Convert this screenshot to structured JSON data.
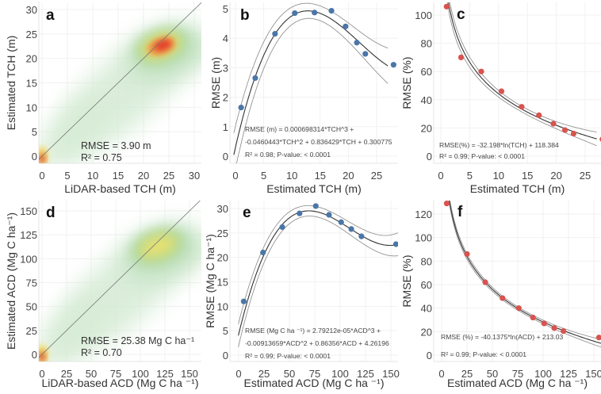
{
  "chart_data": [
    {
      "id": "a",
      "type": "heatmap",
      "panel_label": "a",
      "xlabel": "LiDAR-based TCH (m)",
      "ylabel": "Estimated TCH (m)",
      "xticks": [
        0,
        5,
        10,
        15,
        20,
        25,
        30
      ],
      "yticks": [
        0,
        5,
        10,
        15,
        20,
        25,
        30
      ],
      "xlim": [
        -0.7,
        31.5
      ],
      "ylim": [
        -1.5,
        31.5
      ],
      "one_to_one_line": true,
      "density_peak": [
        23.5,
        22.5
      ],
      "annotation": [
        "RMSE = 3.90 m",
        "R² = 0.75"
      ]
    },
    {
      "id": "b",
      "type": "scatter",
      "panel_label": "b",
      "xlabel": "Estimated TCH (m)",
      "ylabel": "RMSE (m)",
      "xticks": [
        0,
        5,
        10,
        15,
        20,
        25
      ],
      "yticks": [
        0,
        1,
        2,
        3,
        4,
        5
      ],
      "x": [
        1,
        3.5,
        7,
        10.5,
        14,
        17,
        19.5,
        21.5,
        23,
        28
      ],
      "y": [
        1.65,
        2.65,
        4.15,
        4.85,
        4.87,
        4.93,
        4.4,
        3.85,
        3.47,
        3.1
      ],
      "fit": {
        "kind": "cubic",
        "coef": [
          0.000698314,
          -0.0460443,
          0.836429,
          0.300775
        ]
      },
      "point_color": "#4a76a8",
      "annotation": [
        "RMSE (m) = 0.000698314*TCH^3 +",
        "-0.0460443*TCH^2 + 0.836429*TCH + 0.300775",
        "R² = 0.98;   P-value: < 0.0001"
      ]
    },
    {
      "id": "c",
      "type": "scatter",
      "panel_label": "c",
      "xlabel": "Estimated TCH (m)",
      "ylabel": "RMSE (%)",
      "xticks": [
        0,
        5,
        10,
        15,
        20,
        25
      ],
      "yticks": [
        0,
        20,
        40,
        60,
        80,
        100
      ],
      "x": [
        1,
        3.5,
        7,
        10.5,
        14,
        17,
        19.5,
        21.5,
        23,
        28
      ],
      "y": [
        106,
        70,
        60,
        46,
        35,
        29,
        23,
        18.5,
        16,
        12
      ],
      "fit": {
        "kind": "log",
        "coef": [
          -32.198,
          118.384
        ]
      },
      "point_color": "#d9534f",
      "annotation": [
        "RMSE(%) = -32.198*ln(TCH) + 118.384",
        "R² = 0.99;   P-value: < 0.0001"
      ]
    },
    {
      "id": "d",
      "type": "heatmap",
      "panel_label": "d",
      "xlabel": "LiDAR-based ACD (Mg C ha ⁻¹)",
      "ylabel": "Estimated ACD (Mg C ha⁻¹)",
      "xticks": [
        0,
        25,
        50,
        75,
        100,
        125,
        150
      ],
      "yticks": [
        0,
        25,
        50,
        75,
        100,
        125,
        150
      ],
      "one_to_one_line": true,
      "density_peak": [
        118,
        113
      ],
      "annotation": [
        "RMSE = 25.38 Mg C ha⁻¹",
        "R² = 0.70"
      ]
    },
    {
      "id": "e",
      "type": "scatter",
      "panel_label": "e",
      "xlabel": "Estimated ACD (Mg C ha ⁻¹)",
      "ylabel": "RMSE (Mg C ha⁻¹)",
      "xticks": [
        0,
        25,
        50,
        75,
        100,
        125,
        150
      ],
      "yticks": [
        0,
        5,
        10,
        15,
        20,
        25,
        30
      ],
      "x": [
        5,
        24,
        43,
        60,
        76,
        89,
        101,
        111,
        121,
        155
      ],
      "y": [
        11,
        21,
        26.2,
        29,
        30.5,
        28.7,
        27.2,
        25.8,
        24.3,
        22.7
      ],
      "fit": {
        "kind": "cubic",
        "coef": [
          2.79212e-05,
          -0.00913659,
          0.86356,
          4.26196
        ]
      },
      "point_color": "#4a76a8",
      "annotation": [
        "RMSE (Mg C ha ⁻¹) = 2.79212e-05*ACD^3 +",
        "-0.00913659*ACD^2 + 0.86356*ACD + 4.26196",
        "R² = 0.99;   P-value: < 0.0001"
      ]
    },
    {
      "id": "f",
      "type": "scatter",
      "panel_label": "f",
      "xlabel": "Estimated ACD (Mg C ha ⁻¹)",
      "ylabel": "RMSE (%)",
      "xticks": [
        0,
        25,
        50,
        75,
        100,
        125,
        150
      ],
      "yticks": [
        0,
        20,
        40,
        60,
        80,
        100,
        120
      ],
      "x": [
        5,
        25,
        43,
        60,
        76,
        90,
        101,
        111,
        120,
        155
      ],
      "y": [
        129,
        86,
        62,
        48.5,
        40,
        32,
        27,
        23,
        20.5,
        15
      ],
      "fit": {
        "kind": "log",
        "coef": [
          -40.1375,
          213.03
        ]
      },
      "point_color": "#d9534f",
      "annotation": [
        "RMSE (%) = -40.1375*ln(ACD) + 213.03",
        "R² = 0.99;   P-value: < 0.0001"
      ]
    }
  ]
}
